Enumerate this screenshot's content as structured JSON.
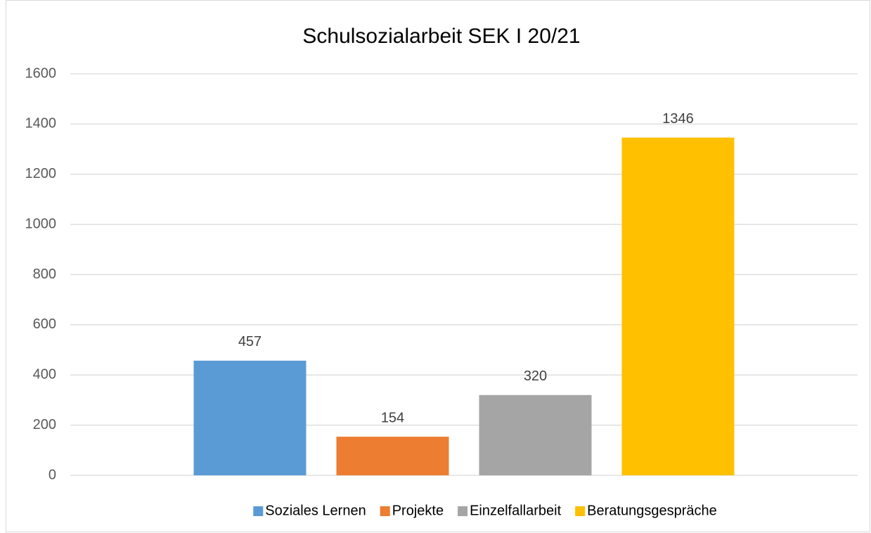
{
  "chart_data": {
    "type": "bar",
    "title": "Schulsozialarbeit SEK I 20/21",
    "categories": [
      null
    ],
    "series": [
      {
        "name": "Soziales Lernen",
        "color": "#5b9bd5",
        "values": [
          457
        ]
      },
      {
        "name": "Projekte",
        "color": "#ed7d31",
        "values": [
          154
        ]
      },
      {
        "name": "Einzelfallarbeit",
        "color": "#a5a5a5",
        "values": [
          320
        ]
      },
      {
        "name": "Beratungsgespräche",
        "color": "#ffc000",
        "values": [
          1346
        ]
      }
    ],
    "ylim": [
      0,
      1600
    ],
    "yticks": [
      0,
      200,
      400,
      600,
      800,
      1000,
      1200,
      1400,
      1600
    ],
    "grid": true,
    "legend": "bottom"
  }
}
